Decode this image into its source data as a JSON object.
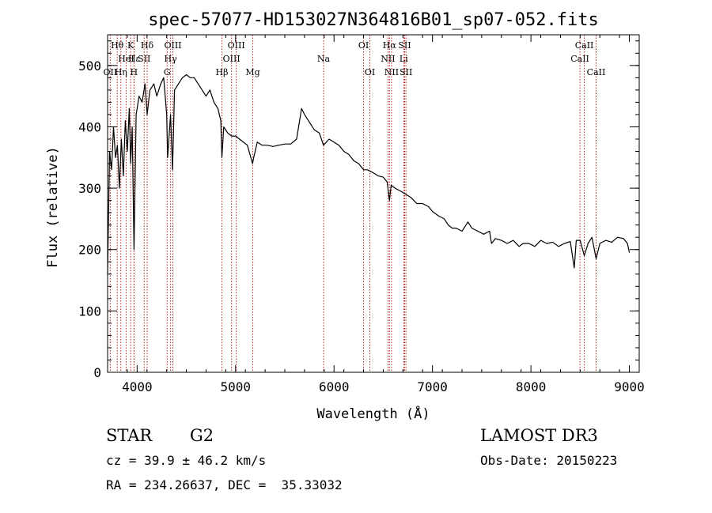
{
  "chart_data": {
    "type": "line",
    "title": "spec-57077-HD153027N364816B01_sp07-052.fits",
    "xlabel": "Wavelength (Å)",
    "ylabel": "Flux (relative)",
    "xlim": [
      3700,
      9100
    ],
    "ylim": [
      0,
      550
    ],
    "xticks": [
      4000,
      5000,
      6000,
      7000,
      8000,
      9000
    ],
    "yticks": [
      0,
      100,
      200,
      300,
      400,
      500
    ],
    "grid": false,
    "legend": "none",
    "line_color": "#000000",
    "marker_color": "#b22222",
    "series": [
      {
        "x": [
          3700,
          3720,
          3740,
          3760,
          3780,
          3800,
          3820,
          3840,
          3860,
          3880,
          3900,
          3920,
          3935,
          3950,
          3968,
          3990,
          4020,
          4050,
          4080,
          4102,
          4130,
          4170,
          4200,
          4240,
          4270,
          4300,
          4310,
          4340,
          4360,
          4380,
          4420,
          4460,
          4500,
          4540,
          4580,
          4620,
          4660,
          4700,
          4740,
          4780,
          4820,
          4850,
          4861,
          4880,
          4920,
          4960,
          5000,
          5040,
          5080,
          5120,
          5172,
          5184,
          5220,
          5270,
          5320,
          5380,
          5440,
          5500,
          5560,
          5620,
          5670,
          5700,
          5740,
          5800,
          5850,
          5893,
          5950,
          6000,
          6050,
          6100,
          6150,
          6200,
          6250,
          6300,
          6340,
          6400,
          6450,
          6500,
          6540,
          6563,
          6580,
          6620,
          6680,
          6730,
          6780,
          6840,
          6900,
          6960,
          7000,
          7060,
          7120,
          7160,
          7200,
          7240,
          7300,
          7360,
          7400,
          7460,
          7520,
          7580,
          7600,
          7640,
          7700,
          7760,
          7820,
          7880,
          7920,
          7980,
          8040,
          8100,
          8160,
          8220,
          8280,
          8340,
          8400,
          8440,
          8460,
          8500,
          8542,
          8580,
          8620,
          8662,
          8700,
          8760,
          8820,
          8880,
          8940,
          8980,
          9000
        ],
        "values": [
          160,
          360,
          330,
          400,
          350,
          370,
          300,
          380,
          320,
          410,
          360,
          430,
          340,
          400,
          200,
          420,
          450,
          440,
          470,
          420,
          460,
          470,
          450,
          470,
          480,
          420,
          350,
          420,
          330,
          460,
          470,
          480,
          485,
          480,
          480,
          470,
          460,
          450,
          460,
          440,
          430,
          410,
          350,
          400,
          390,
          385,
          385,
          380,
          375,
          370,
          340,
          350,
          375,
          370,
          370,
          368,
          370,
          372,
          372,
          380,
          430,
          420,
          410,
          395,
          390,
          370,
          380,
          375,
          370,
          360,
          355,
          345,
          340,
          330,
          330,
          325,
          320,
          318,
          310,
          280,
          305,
          300,
          295,
          290,
          285,
          275,
          275,
          270,
          262,
          255,
          250,
          240,
          235,
          235,
          230,
          245,
          235,
          230,
          225,
          230,
          210,
          218,
          215,
          210,
          215,
          205,
          210,
          210,
          205,
          215,
          210,
          212,
          205,
          210,
          213,
          170,
          215,
          215,
          190,
          210,
          220,
          185,
          210,
          215,
          212,
          220,
          218,
          210,
          195
        ]
      }
    ],
    "lines": [
      {
        "label": "Hθ",
        "x": 3798,
        "row": 1
      },
      {
        "label": "OII",
        "x": 3727,
        "row": 3
      },
      {
        "label": "Hη",
        "x": 3835,
        "row": 3
      },
      {
        "label": "HeI",
        "x": 3889,
        "row": 2
      },
      {
        "label": "K",
        "x": 3934,
        "row": 1
      },
      {
        "label": "SII",
        "x": 4072,
        "row": 2
      },
      {
        "label": "H",
        "x": 3968,
        "row": 3
      },
      {
        "label": "Hε",
        "x": 3970,
        "row": 2
      },
      {
        "label": "Hδ",
        "x": 4102,
        "row": 1
      },
      {
        "label": "OIII",
        "x": 4363,
        "row": 1
      },
      {
        "label": "Hγ",
        "x": 4340,
        "row": 2
      },
      {
        "label": "G",
        "x": 4305,
        "row": 3
      },
      {
        "label": "Hβ",
        "x": 4861,
        "row": 3
      },
      {
        "label": "OIII",
        "x": 5007,
        "row": 1
      },
      {
        "label": "OIII",
        "x": 4959,
        "row": 2
      },
      {
        "label": "Mg",
        "x": 5175,
        "row": 3
      },
      {
        "label": "Na",
        "x": 5894,
        "row": 2
      },
      {
        "label": "OI",
        "x": 6300,
        "row": 1
      },
      {
        "label": "OI",
        "x": 6364,
        "row": 3
      },
      {
        "label": "Hα",
        "x": 6563,
        "row": 1
      },
      {
        "label": "NII",
        "x": 6548,
        "row": 2
      },
      {
        "label": "NII",
        "x": 6584,
        "row": 3
      },
      {
        "label": "SII",
        "x": 6717,
        "row": 1
      },
      {
        "label": "Li",
        "x": 6708,
        "row": 2
      },
      {
        "label": "SII",
        "x": 6731,
        "row": 3
      },
      {
        "label": "CaII",
        "x": 8498,
        "row": 2
      },
      {
        "label": "CaII",
        "x": 8542,
        "row": 1
      },
      {
        "label": "CaII",
        "x": 8662,
        "row": 3
      }
    ]
  },
  "info": {
    "object_type": "STAR",
    "subclass": "G2",
    "survey": "LAMOST DR3",
    "cz": "cz = 39.9 ± 46.2 km/s",
    "obs_date": "Obs-Date: 20150223",
    "coords": "RA = 234.26637, DEC =  35.33032"
  }
}
